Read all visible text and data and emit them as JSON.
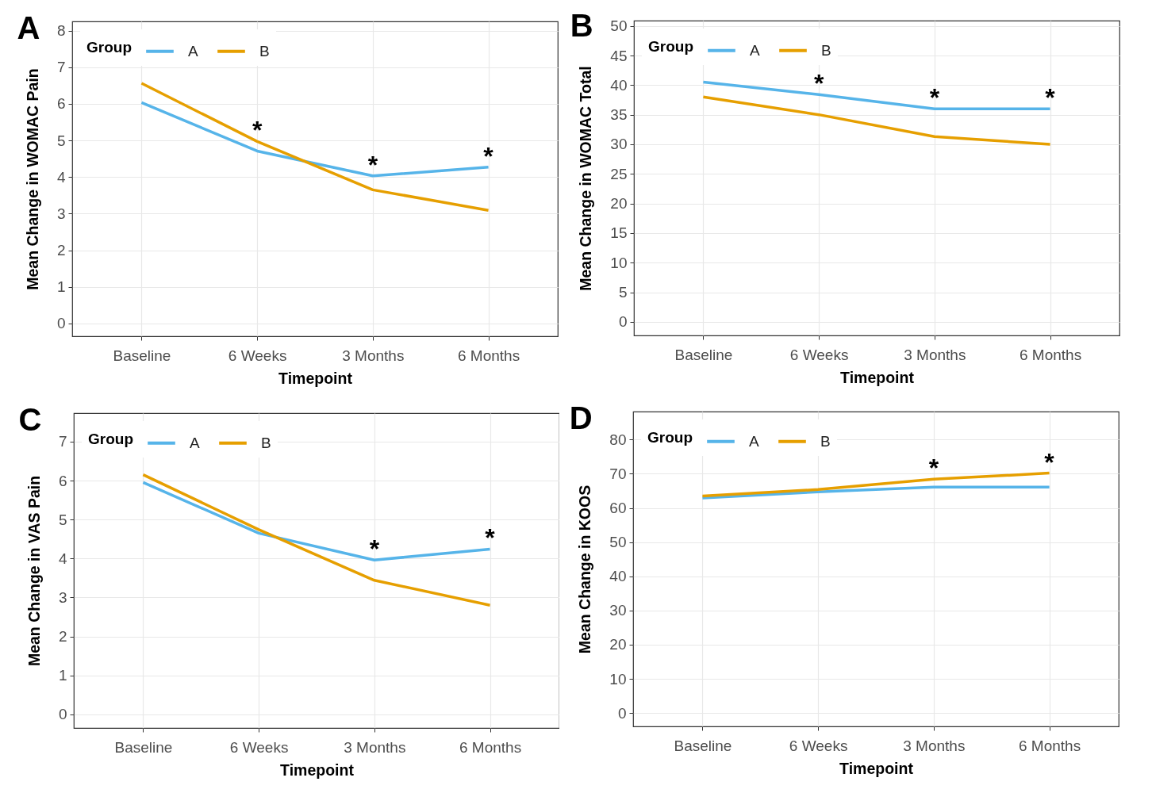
{
  "chart_data": [
    {
      "type": "line",
      "title": "A",
      "xlabel": "Timepoint",
      "ylabel": "Mean Change in WOMAC Pain",
      "legend_title": "Group",
      "categories": [
        "Baseline",
        "6 Weeks",
        "3 Months",
        "6 Months"
      ],
      "series": [
        {
          "name": "A",
          "color": "#56b4e9",
          "values": [
            6.03,
            4.71,
            4.03,
            4.27
          ]
        },
        {
          "name": "B",
          "color": "#e69f00",
          "values": [
            6.56,
            4.97,
            3.65,
            3.09
          ]
        }
      ],
      "ylim": [
        -0.35,
        8.25
      ],
      "yticks": [
        0,
        1,
        2,
        3,
        4,
        5,
        6,
        7,
        8
      ],
      "grid": true,
      "legend": "top left",
      "annotations": [
        {
          "text": "*",
          "x": "6 Weeks",
          "y": 4.97
        },
        {
          "text": "*",
          "x": "3 Months",
          "y": 4.03
        },
        {
          "text": "*",
          "x": "6 Months",
          "y": 4.27
        }
      ]
    },
    {
      "type": "line",
      "title": "B",
      "xlabel": "Timepoint",
      "ylabel": "Mean Change in WOMAC Total",
      "legend_title": "Group",
      "categories": [
        "Baseline",
        "6 Weeks",
        "3 Months",
        "6 Months"
      ],
      "series": [
        {
          "name": "A",
          "color": "#56b4e9",
          "values": [
            40.5,
            38.4,
            36,
            36
          ]
        },
        {
          "name": "B",
          "color": "#e69f00",
          "values": [
            38,
            35,
            31.3,
            30
          ]
        }
      ],
      "ylim": [
        -2.3,
        50.9
      ],
      "yticks": [
        0,
        5,
        10,
        15,
        20,
        25,
        30,
        35,
        40,
        45,
        50
      ],
      "grid": true,
      "legend": "top left",
      "annotations": [
        {
          "text": "*",
          "x": "6 Weeks",
          "y": 38.4
        },
        {
          "text": "*",
          "x": "3 Months",
          "y": 36
        },
        {
          "text": "*",
          "x": "6 Months",
          "y": 36
        }
      ]
    },
    {
      "type": "line",
      "title": "C",
      "xlabel": "Timepoint",
      "ylabel": "Mean Change in VAS Pain",
      "legend_title": "Group",
      "categories": [
        "Baseline",
        "6 Weeks",
        "3 Months",
        "6 Months"
      ],
      "series": [
        {
          "name": "A",
          "color": "#56b4e9",
          "values": [
            5.95,
            4.65,
            3.96,
            4.24
          ]
        },
        {
          "name": "B",
          "color": "#e69f00",
          "values": [
            6.15,
            4.74,
            3.44,
            2.8
          ]
        }
      ],
      "ylim": [
        -0.35,
        7.73
      ],
      "yticks": [
        0,
        1,
        2,
        3,
        4,
        5,
        6,
        7
      ],
      "grid": true,
      "legend": "top left",
      "annotations": [
        {
          "text": "*",
          "x": "3 Months",
          "y": 3.96
        },
        {
          "text": "*",
          "x": "6 Months",
          "y": 4.24
        }
      ]
    },
    {
      "type": "line",
      "title": "D",
      "xlabel": "Timepoint",
      "ylabel": "Mean Change in KOOS",
      "legend_title": "Group",
      "categories": [
        "Baseline",
        "6 Weeks",
        "3 Months",
        "6 Months"
      ],
      "series": [
        {
          "name": "A",
          "color": "#56b4e9",
          "values": [
            62.9,
            64.7,
            66.1,
            66.1
          ]
        },
        {
          "name": "B",
          "color": "#e69f00",
          "values": [
            63.5,
            65.4,
            68.4,
            70.2
          ]
        }
      ],
      "ylim": [
        -3.9,
        88.2
      ],
      "yticks": [
        0,
        10,
        20,
        30,
        40,
        50,
        60,
        70,
        80
      ],
      "grid": true,
      "legend": "top left",
      "annotations": [
        {
          "text": "*",
          "x": "3 Months",
          "y": 68.4
        },
        {
          "text": "*",
          "x": "6 Months",
          "y": 70.2
        }
      ]
    }
  ]
}
